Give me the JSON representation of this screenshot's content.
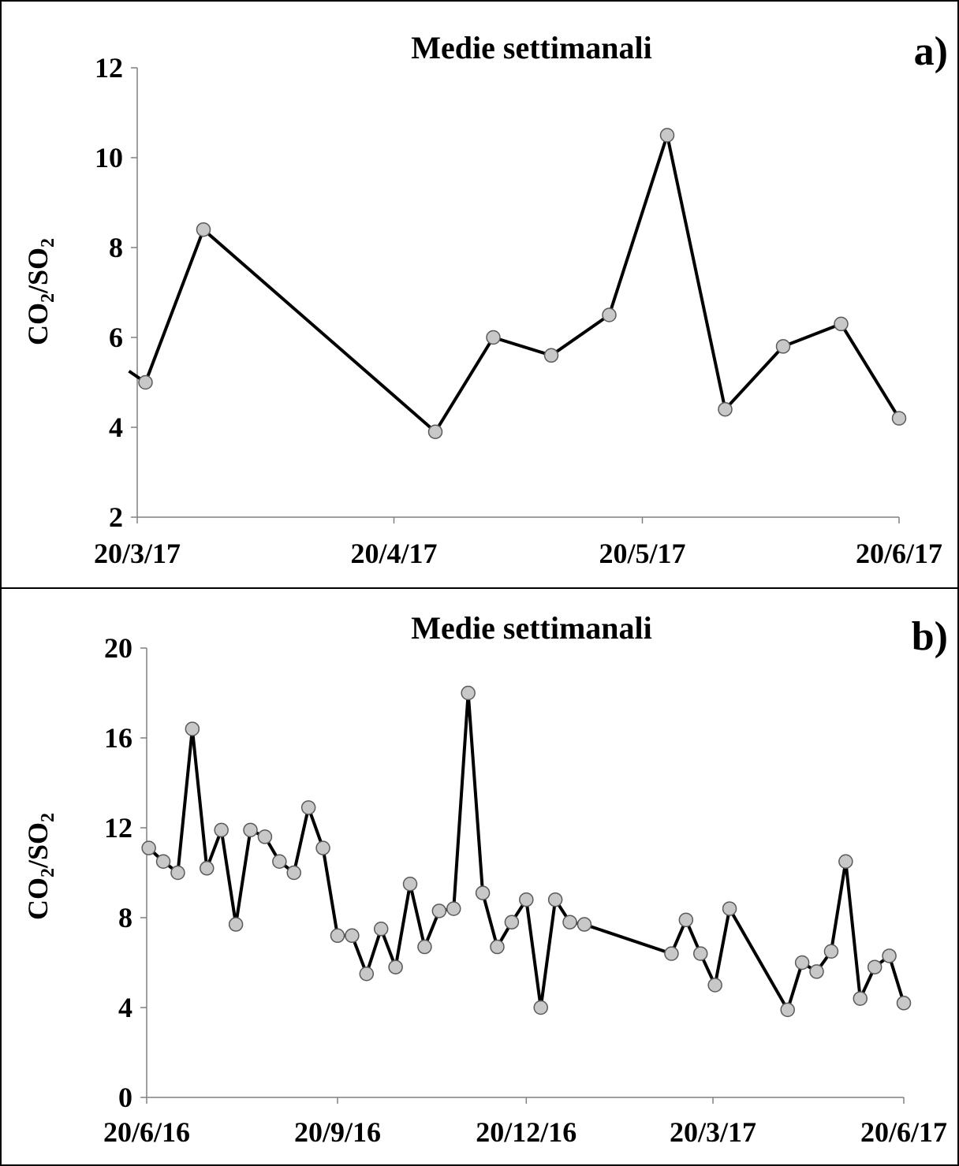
{
  "chart_data": [
    {
      "type": "line",
      "panel_label": "a)",
      "title": "Medie settimanali",
      "ylabel": {
        "prefix": "CO",
        "sub1": "2",
        "mid": "/SO",
        "sub2": "2"
      },
      "xlabel": "",
      "ylim": [
        2,
        12
      ],
      "yticks": [
        2,
        4,
        6,
        8,
        10,
        12
      ],
      "xticks": [
        "20/3/17",
        "20/4/17",
        "20/5/17",
        "20/6/17"
      ],
      "xrange": [
        "2017-03-20",
        "2017-06-20"
      ],
      "grid": false,
      "marker": "circle",
      "marker_color": "#c8c8c8",
      "line_color": "#000000",
      "line_entry": {
        "x": "2017-03-19",
        "y": 5.25
      },
      "x": [
        "2017-03-21",
        "2017-03-28",
        "2017-04-25",
        "2017-05-02",
        "2017-05-09",
        "2017-05-16",
        "2017-05-23",
        "2017-05-30",
        "2017-06-06",
        "2017-06-13",
        "2017-06-20"
      ],
      "values": [
        5.0,
        8.4,
        3.9,
        6.0,
        5.6,
        6.5,
        10.5,
        4.4,
        5.8,
        6.3,
        4.2
      ]
    },
    {
      "type": "line",
      "panel_label": "b)",
      "title": "Medie settimanali",
      "ylabel": {
        "prefix": "CO",
        "sub1": "2",
        "mid": "/SO",
        "sub2": "2"
      },
      "xlabel": "",
      "ylim": [
        0,
        20
      ],
      "yticks": [
        0,
        4,
        8,
        12,
        16,
        20
      ],
      "xticks": [
        "20/6/16",
        "20/9/16",
        "20/12/16",
        "20/3/17",
        "20/6/17"
      ],
      "xrange": [
        "2016-06-20",
        "2017-06-20"
      ],
      "grid": false,
      "marker": "circle",
      "marker_color": "#c8c8c8",
      "line_color": "#000000",
      "x": [
        "2016-06-21",
        "2016-06-28",
        "2016-07-05",
        "2016-07-12",
        "2016-07-19",
        "2016-07-26",
        "2016-08-02",
        "2016-08-09",
        "2016-08-16",
        "2016-08-23",
        "2016-08-30",
        "2016-09-06",
        "2016-09-13",
        "2016-09-20",
        "2016-09-27",
        "2016-10-04",
        "2016-10-11",
        "2016-10-18",
        "2016-10-25",
        "2016-11-01",
        "2016-11-08",
        "2016-11-15",
        "2016-11-22",
        "2016-11-29",
        "2016-12-06",
        "2016-12-13",
        "2016-12-20",
        "2016-12-27",
        "2017-01-03",
        "2017-01-10",
        "2017-01-17",
        "2017-02-28",
        "2017-03-07",
        "2017-03-14",
        "2017-03-21",
        "2017-03-28",
        "2017-04-25",
        "2017-05-02",
        "2017-05-09",
        "2017-05-16",
        "2017-05-23",
        "2017-05-30",
        "2017-06-06",
        "2017-06-13",
        "2017-06-20"
      ],
      "values": [
        11.1,
        10.5,
        10.0,
        16.4,
        10.2,
        11.9,
        7.7,
        11.9,
        11.6,
        10.5,
        10.0,
        12.9,
        11.1,
        7.2,
        7.2,
        5.5,
        7.5,
        5.8,
        9.5,
        6.7,
        8.3,
        8.4,
        18.0,
        9.1,
        6.7,
        7.8,
        8.8,
        4.0,
        8.8,
        7.8,
        7.7,
        6.4,
        7.9,
        6.4,
        5.0,
        8.4,
        3.9,
        6.0,
        5.6,
        6.5,
        10.5,
        4.4,
        5.8,
        6.3,
        4.2
      ]
    }
  ]
}
